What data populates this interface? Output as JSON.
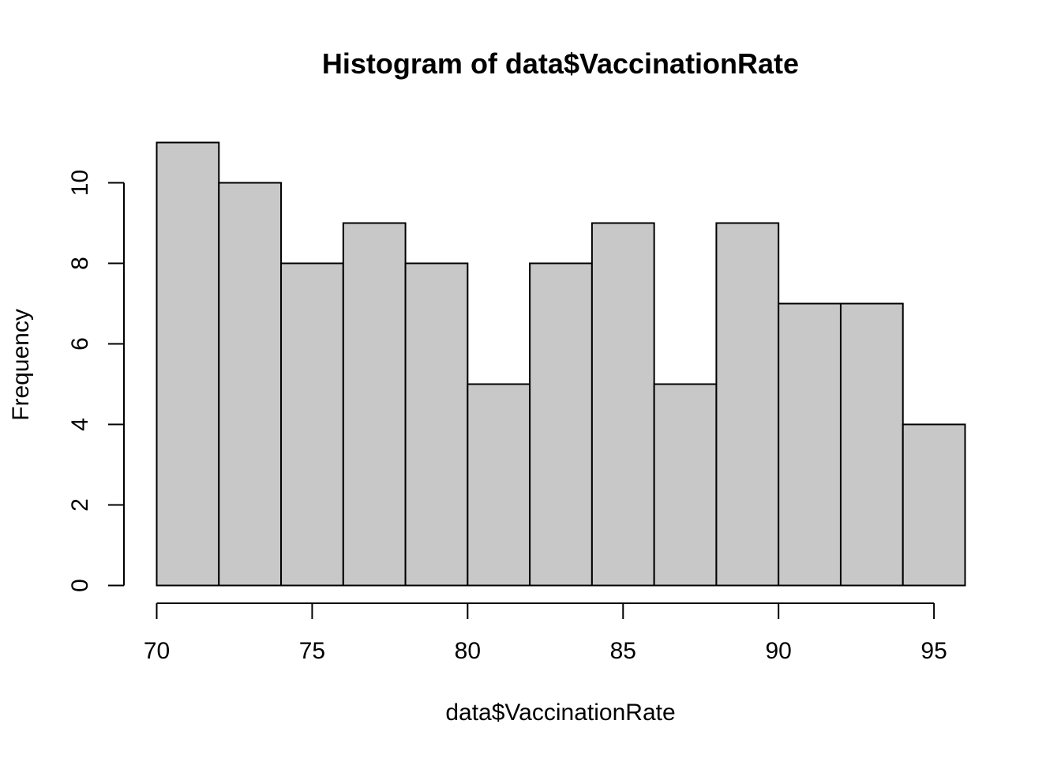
{
  "chart_data": {
    "type": "bar",
    "title": "Histogram of data$VaccinationRate",
    "xlabel": "data$VaccinationRate",
    "ylabel": "Frequency",
    "bin_edges": [
      70,
      72,
      74,
      76,
      78,
      80,
      82,
      84,
      86,
      88,
      90,
      92,
      94,
      96
    ],
    "values": [
      11,
      10,
      8,
      9,
      8,
      5,
      8,
      9,
      5,
      9,
      7,
      7,
      4
    ],
    "xlim": [
      70,
      96
    ],
    "ylim": [
      0,
      11
    ],
    "x_ticks": [
      70,
      75,
      80,
      85,
      90,
      95
    ],
    "y_ticks": [
      0,
      2,
      4,
      6,
      8,
      10
    ],
    "grid": false,
    "legend": "none",
    "bar_fill": "#c8c8c8",
    "bar_stroke": "#000000"
  }
}
